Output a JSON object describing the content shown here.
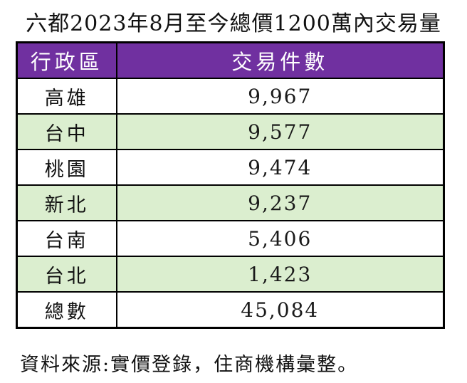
{
  "title": "六都2023年8月至今總價1200萬內交易量",
  "table": {
    "headers": {
      "district": "行政區",
      "count": "交易件數"
    },
    "rows": [
      {
        "district": "高雄",
        "count": "9,967"
      },
      {
        "district": "台中",
        "count": "9,577"
      },
      {
        "district": "桃園",
        "count": "9,474"
      },
      {
        "district": "新北",
        "count": "9,237"
      },
      {
        "district": "台南",
        "count": "5,406"
      },
      {
        "district": "台北",
        "count": "1,423"
      },
      {
        "district": "總數",
        "count": "45,084"
      }
    ]
  },
  "footer": "資料來源:實價登錄，住商機構彙整。",
  "colors": {
    "header_bg": "#7030A0",
    "header_text": "#FFFFFF",
    "stripe_bg": "#DBEECF",
    "border": "#000000"
  }
}
